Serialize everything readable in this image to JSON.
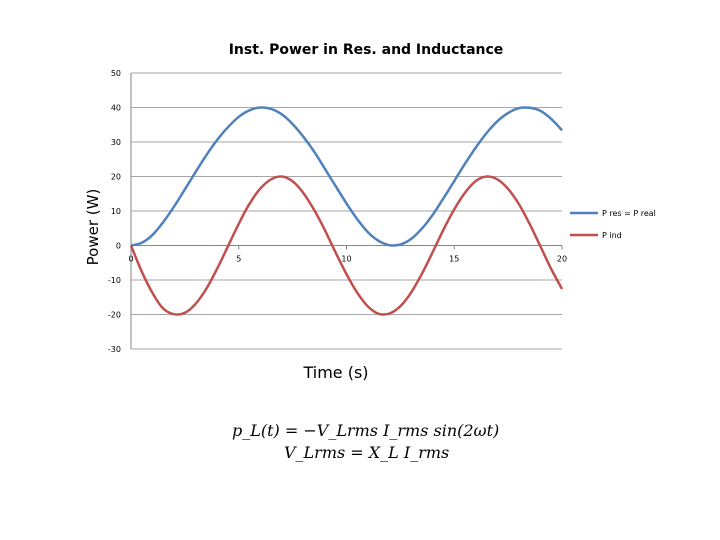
{
  "chart_data": {
    "type": "line",
    "title": "Inst. Power in Res. and Inductance",
    "xlabel": "Time (s)",
    "ylabel": "Power (W)",
    "xlim": [
      0,
      20
    ],
    "ylim": [
      -30,
      50
    ],
    "x_ticks": [
      0,
      5,
      10,
      15,
      20
    ],
    "y_ticks": [
      -30,
      -20,
      -10,
      0,
      10,
      20,
      30,
      40,
      50
    ],
    "grid": true,
    "legend_position": "right",
    "series": [
      {
        "name": "P res = P real",
        "color": "#4f81bd",
        "x": [
          0,
          0.5,
          1,
          1.5,
          2,
          2.5,
          3,
          3.5,
          4,
          4.5,
          5,
          5.5,
          6,
          6.5,
          7,
          7.5,
          8,
          8.5,
          9,
          9.5,
          10,
          10.5,
          11,
          11.5,
          12,
          12.5,
          13,
          13.5,
          14,
          14.5,
          15,
          15.5,
          16,
          16.5,
          17,
          17.5,
          18,
          18.5,
          19,
          19.5,
          20
        ],
        "y": [
          0,
          0.8,
          3.1,
          6.8,
          11.3,
          16.3,
          21.3,
          26.2,
          30.6,
          34.3,
          37.3,
          39.2,
          40.0,
          39.6,
          38.0,
          35.2,
          31.5,
          27.2,
          22.2,
          17.2,
          12.2,
          7.6,
          3.8,
          1.3,
          0.1,
          0.3,
          1.9,
          4.9,
          8.9,
          13.7,
          18.7,
          23.7,
          28.4,
          32.6,
          36.0,
          38.4,
          39.8,
          39.9,
          39.0,
          36.7,
          33.4
        ]
      },
      {
        "name": "P ind",
        "color": "#c0504d",
        "x": [
          0,
          0.5,
          1,
          1.5,
          2,
          2.5,
          3,
          3.5,
          4,
          4.5,
          5,
          5.5,
          6,
          6.5,
          7,
          7.5,
          8,
          8.5,
          9,
          9.5,
          10,
          10.5,
          11,
          11.5,
          12,
          12.5,
          13,
          13.5,
          14,
          14.5,
          15,
          15.5,
          16,
          16.5,
          17,
          17.5,
          18,
          18.5,
          19,
          19.5,
          20
        ],
        "y": [
          0,
          -7.6,
          -13.8,
          -18.3,
          -19.9,
          -19.5,
          -16.9,
          -12.5,
          -6.7,
          -0.2,
          6.3,
          12.1,
          16.5,
          19.2,
          20.0,
          18.6,
          15.2,
          10.3,
          4.4,
          -2.1,
          -8.3,
          -13.7,
          -17.7,
          -19.8,
          -19.7,
          -17.6,
          -13.6,
          -8.2,
          -1.9,
          4.6,
          10.5,
          15.3,
          18.7,
          20.0,
          19.2,
          16.4,
          12.0,
          6.2,
          -0.3,
          -6.8,
          -12.6
        ]
      }
    ]
  },
  "formula": {
    "line1": "p_L(t) = −V_Lrms I_rms sin(2ωt)",
    "line2": "V_Lrms = X_L I_rms"
  }
}
